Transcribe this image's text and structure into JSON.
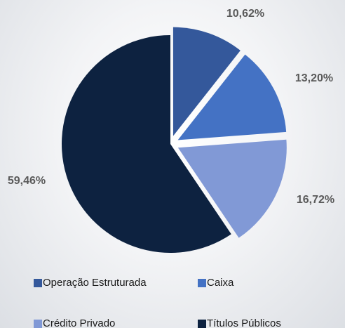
{
  "chart_data": {
    "type": "pie",
    "categories": [
      "Operação Estruturada",
      "Caixa",
      "Crédito Privado",
      "Títulos Públicos"
    ],
    "values": [
      10.62,
      13.2,
      16.72,
      59.46
    ],
    "value_labels": [
      "10,62%",
      "13,20%",
      "16,72%",
      "59,46%"
    ],
    "colors": [
      "#34589b",
      "#4472c4",
      "#8199d6",
      "#0d2240"
    ],
    "legend": "bottom"
  }
}
